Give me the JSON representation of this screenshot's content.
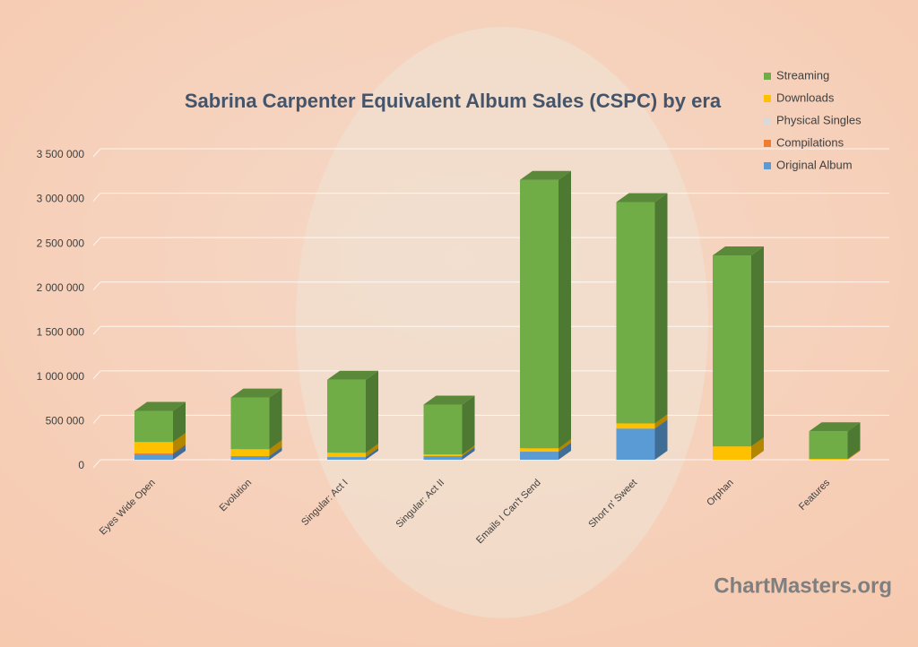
{
  "chart_data": {
    "type": "bar3d_stacked",
    "title": "Sabrina Carpenter Equivalent Album Sales (CSPC) by era",
    "watermark": "ChartMasters.org",
    "categories": [
      "Eyes Wide Open",
      "Evolution",
      "Singular: Act I",
      "Singular: Act II",
      "Emails I Can't Send",
      "Short n' Sweet",
      "Orphan",
      "Features"
    ],
    "series": [
      {
        "name": "Original Album",
        "color": "#5b9bd5",
        "values": [
          60000,
          40000,
          30000,
          40000,
          90000,
          350000,
          0,
          0
        ]
      },
      {
        "name": "Compilations",
        "color": "#ed7d31",
        "values": [
          10000,
          0,
          0,
          0,
          0,
          0,
          0,
          0
        ]
      },
      {
        "name": "Physical Singles",
        "color": "#d9d9d9",
        "values": [
          0,
          0,
          0,
          0,
          0,
          0,
          0,
          0
        ]
      },
      {
        "name": "Downloads",
        "color": "#ffc000",
        "values": [
          130000,
          80000,
          50000,
          20000,
          40000,
          60000,
          150000,
          10000
        ]
      },
      {
        "name": "Streaming",
        "color": "#70ad47",
        "values": [
          350000,
          580000,
          820000,
          560000,
          3020000,
          2490000,
          2150000,
          310000
        ]
      }
    ],
    "ylim": [
      0,
      3500000
    ],
    "yticks": [
      0,
      {
        "value": 500000,
        "label": "500 000"
      },
      {
        "value": 1000000,
        "label": "1 000 000"
      },
      {
        "value": 1500000,
        "label": "1 500 000"
      },
      {
        "value": 2000000,
        "label": "2 000 000"
      },
      {
        "value": 2500000,
        "label": "2 500 000"
      },
      {
        "value": 3000000,
        "label": "3 000 000"
      },
      {
        "value": 3500000,
        "label": "3 500 000"
      }
    ],
    "grid": true,
    "legend": "top-right"
  }
}
